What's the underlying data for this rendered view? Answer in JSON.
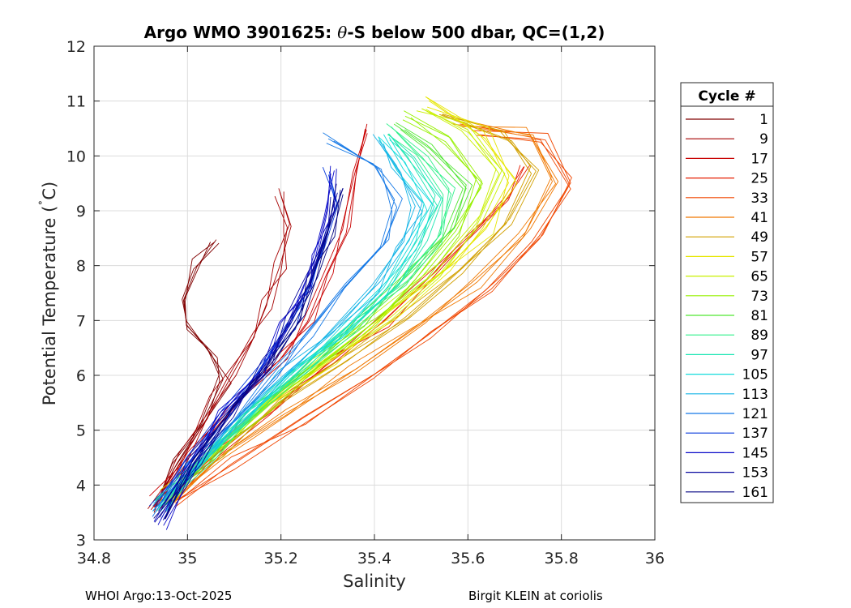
{
  "chart_data": {
    "type": "line",
    "title_parts": [
      "Argo WMO 3901625: ",
      "θ",
      "-S below 500 dbar,  QC=(1,2)"
    ],
    "xlabel": "Salinity",
    "ylabel_parts": [
      "Potential Temperature (",
      "˚",
      "C)"
    ],
    "xlim": [
      34.8,
      36
    ],
    "ylim": [
      3,
      12
    ],
    "x_ticks": [
      34.8,
      35,
      35.2,
      35.4,
      35.6,
      35.8,
      36
    ],
    "x_tick_labels": [
      "34.8",
      "35",
      "35.2",
      "35.4",
      "35.6",
      "35.8",
      "36"
    ],
    "y_ticks": [
      3,
      4,
      5,
      6,
      7,
      8,
      9,
      10,
      11,
      12
    ],
    "y_tick_labels": [
      "3",
      "4",
      "5",
      "6",
      "7",
      "8",
      "9",
      "10",
      "11",
      "12"
    ],
    "grid": true,
    "legend_title": "Cycle #",
    "legend_position": "outside-right",
    "series": [
      {
        "name": "1",
        "color": "#800000",
        "values": [
          [
            34.93,
            3.6
          ],
          [
            34.98,
            4.4
          ],
          [
            35.03,
            5.1
          ],
          [
            35.08,
            5.9
          ],
          [
            35.05,
            6.4
          ],
          [
            35.0,
            6.9
          ],
          [
            34.99,
            7.4
          ],
          [
            35.02,
            8.0
          ],
          [
            35.06,
            8.5
          ]
        ]
      },
      {
        "name": "9",
        "color": "#a50000",
        "values": [
          [
            34.93,
            3.6
          ],
          [
            34.99,
            4.5
          ],
          [
            35.06,
            5.5
          ],
          [
            35.1,
            6.1
          ],
          [
            35.14,
            6.7
          ],
          [
            35.17,
            7.3
          ],
          [
            35.2,
            8.0
          ],
          [
            35.22,
            8.7
          ],
          [
            35.2,
            9.3
          ]
        ]
      },
      {
        "name": "17",
        "color": "#c80000",
        "values": [
          [
            34.93,
            3.7
          ],
          [
            35.01,
            4.6
          ],
          [
            35.12,
            5.7
          ],
          [
            35.2,
            6.3
          ],
          [
            35.26,
            7.0
          ],
          [
            35.3,
            7.8
          ],
          [
            35.34,
            8.6
          ],
          [
            35.36,
            9.6
          ],
          [
            35.38,
            10.5
          ]
        ]
      },
      {
        "name": "25",
        "color": "#e61e00",
        "values": [
          [
            34.94,
            3.6
          ],
          [
            35.04,
            4.4
          ],
          [
            35.18,
            5.4
          ],
          [
            35.3,
            6.2
          ],
          [
            35.42,
            7.0
          ],
          [
            35.52,
            7.8
          ],
          [
            35.6,
            8.5
          ],
          [
            35.68,
            9.2
          ],
          [
            35.72,
            9.8
          ]
        ]
      },
      {
        "name": "33",
        "color": "#f04600",
        "values": [
          [
            34.97,
            3.7
          ],
          [
            35.1,
            4.4
          ],
          [
            35.25,
            5.2
          ],
          [
            35.4,
            6.0
          ],
          [
            35.53,
            6.8
          ],
          [
            35.65,
            7.6
          ],
          [
            35.75,
            8.5
          ],
          [
            35.82,
            9.5
          ],
          [
            35.77,
            10.3
          ],
          [
            35.62,
            10.5
          ]
        ]
      },
      {
        "name": "41",
        "color": "#f07800",
        "values": [
          [
            34.96,
            3.7
          ],
          [
            35.08,
            4.5
          ],
          [
            35.22,
            5.3
          ],
          [
            35.36,
            6.1
          ],
          [
            35.5,
            6.9
          ],
          [
            35.62,
            7.7
          ],
          [
            35.72,
            8.6
          ],
          [
            35.78,
            9.6
          ],
          [
            35.74,
            10.4
          ],
          [
            35.58,
            10.6
          ]
        ]
      },
      {
        "name": "49",
        "color": "#d2a000",
        "values": [
          [
            34.96,
            3.8
          ],
          [
            35.07,
            4.6
          ],
          [
            35.2,
            5.5
          ],
          [
            35.34,
            6.3
          ],
          [
            35.47,
            7.1
          ],
          [
            35.58,
            7.9
          ],
          [
            35.68,
            8.8
          ],
          [
            35.74,
            9.7
          ],
          [
            35.68,
            10.4
          ],
          [
            35.55,
            10.8
          ]
        ]
      },
      {
        "name": "57",
        "color": "#e6e600",
        "values": [
          [
            34.96,
            3.8
          ],
          [
            35.06,
            4.6
          ],
          [
            35.18,
            5.5
          ],
          [
            35.31,
            6.3
          ],
          [
            35.44,
            7.1
          ],
          [
            35.55,
            7.9
          ],
          [
            35.64,
            8.7
          ],
          [
            35.7,
            9.6
          ],
          [
            35.63,
            10.4
          ],
          [
            35.52,
            11.0
          ]
        ]
      },
      {
        "name": "65",
        "color": "#c8f000",
        "values": [
          [
            34.95,
            3.8
          ],
          [
            35.05,
            4.6
          ],
          [
            35.17,
            5.5
          ],
          [
            35.3,
            6.3
          ],
          [
            35.42,
            7.1
          ],
          [
            35.53,
            7.9
          ],
          [
            35.62,
            8.8
          ],
          [
            35.67,
            9.7
          ],
          [
            35.6,
            10.5
          ],
          [
            35.5,
            10.9
          ]
        ]
      },
      {
        "name": "73",
        "color": "#96f000",
        "values": [
          [
            34.95,
            3.7
          ],
          [
            35.05,
            4.6
          ],
          [
            35.16,
            5.4
          ],
          [
            35.28,
            6.2
          ],
          [
            35.4,
            7.0
          ],
          [
            35.5,
            7.8
          ],
          [
            35.58,
            8.6
          ],
          [
            35.63,
            9.5
          ],
          [
            35.56,
            10.3
          ],
          [
            35.47,
            10.7
          ]
        ]
      },
      {
        "name": "81",
        "color": "#50e632",
        "values": [
          [
            34.95,
            3.7
          ],
          [
            35.04,
            4.5
          ],
          [
            35.15,
            5.4
          ],
          [
            35.27,
            6.2
          ],
          [
            35.38,
            7.0
          ],
          [
            35.48,
            7.8
          ],
          [
            35.56,
            8.6
          ],
          [
            35.6,
            9.4
          ],
          [
            35.52,
            10.2
          ],
          [
            35.45,
            10.6
          ]
        ]
      },
      {
        "name": "89",
        "color": "#32f08c",
        "values": [
          [
            34.94,
            3.7
          ],
          [
            35.04,
            4.5
          ],
          [
            35.14,
            5.3
          ],
          [
            35.25,
            6.1
          ],
          [
            35.36,
            6.9
          ],
          [
            35.46,
            7.7
          ],
          [
            35.53,
            8.5
          ],
          [
            35.56,
            9.3
          ],
          [
            35.5,
            10.0
          ],
          [
            35.44,
            10.5
          ]
        ]
      },
      {
        "name": "97",
        "color": "#1ee6b4",
        "values": [
          [
            34.94,
            3.6
          ],
          [
            35.03,
            4.5
          ],
          [
            35.13,
            5.3
          ],
          [
            35.24,
            6.1
          ],
          [
            35.34,
            6.9
          ],
          [
            35.44,
            7.7
          ],
          [
            35.5,
            8.5
          ],
          [
            35.54,
            9.2
          ],
          [
            35.48,
            9.9
          ],
          [
            35.43,
            10.4
          ]
        ]
      },
      {
        "name": "105",
        "color": "#14dcdc",
        "values": [
          [
            34.94,
            3.6
          ],
          [
            35.03,
            4.4
          ],
          [
            35.12,
            5.2
          ],
          [
            35.22,
            6.0
          ],
          [
            35.33,
            6.8
          ],
          [
            35.42,
            7.6
          ],
          [
            35.48,
            8.4
          ],
          [
            35.52,
            9.1
          ],
          [
            35.46,
            9.8
          ],
          [
            35.42,
            10.4
          ]
        ]
      },
      {
        "name": "113",
        "color": "#14b4e6",
        "values": [
          [
            34.94,
            3.6
          ],
          [
            35.02,
            4.4
          ],
          [
            35.11,
            5.2
          ],
          [
            35.21,
            6.0
          ],
          [
            35.31,
            6.8
          ],
          [
            35.4,
            7.6
          ],
          [
            35.46,
            8.4
          ],
          [
            35.49,
            9.1
          ],
          [
            35.45,
            9.8
          ],
          [
            35.41,
            10.3
          ]
        ]
      },
      {
        "name": "121",
        "color": "#1478e6",
        "values": [
          [
            34.93,
            3.5
          ],
          [
            35.01,
            4.4
          ],
          [
            35.1,
            5.2
          ],
          [
            35.18,
            6.0
          ],
          [
            35.26,
            6.8
          ],
          [
            35.34,
            7.6
          ],
          [
            35.42,
            8.4
          ],
          [
            35.45,
            9.1
          ],
          [
            35.4,
            9.8
          ],
          [
            35.3,
            10.3
          ]
        ]
      },
      {
        "name": "137",
        "color": "#0a3cdc",
        "values": [
          [
            34.93,
            3.6
          ],
          [
            35.0,
            4.5
          ],
          [
            35.08,
            5.4
          ],
          [
            35.16,
            6.2
          ],
          [
            35.22,
            6.9
          ],
          [
            35.26,
            7.6
          ],
          [
            35.29,
            8.4
          ],
          [
            35.32,
            9.2
          ],
          [
            35.3,
            9.7
          ]
        ]
      },
      {
        "name": "145",
        "color": "#0a0ac8",
        "values": [
          [
            34.94,
            3.3
          ],
          [
            35.0,
            4.3
          ],
          [
            35.08,
            5.3
          ],
          [
            35.16,
            6.1
          ],
          [
            35.21,
            6.9
          ],
          [
            35.25,
            7.6
          ],
          [
            35.28,
            8.3
          ],
          [
            35.3,
            9.0
          ],
          [
            35.31,
            9.8
          ]
        ]
      },
      {
        "name": "153",
        "color": "#0a0aa0",
        "values": [
          [
            34.94,
            3.4
          ],
          [
            35.01,
            4.4
          ],
          [
            35.09,
            5.3
          ],
          [
            35.17,
            6.2
          ],
          [
            35.22,
            7.0
          ],
          [
            35.26,
            7.7
          ],
          [
            35.29,
            8.5
          ],
          [
            35.32,
            9.3
          ]
        ]
      },
      {
        "name": "161",
        "color": "#000080",
        "values": [
          [
            34.94,
            3.5
          ],
          [
            35.02,
            4.5
          ],
          [
            35.1,
            5.4
          ],
          [
            35.18,
            6.2
          ],
          [
            35.24,
            7.0
          ],
          [
            35.27,
            7.8
          ],
          [
            35.3,
            8.6
          ],
          [
            35.33,
            9.4
          ]
        ]
      }
    ]
  },
  "footer": {
    "left": "WHOI Argo:13-Oct-2025",
    "right": "Birgit KLEIN at coriolis"
  }
}
